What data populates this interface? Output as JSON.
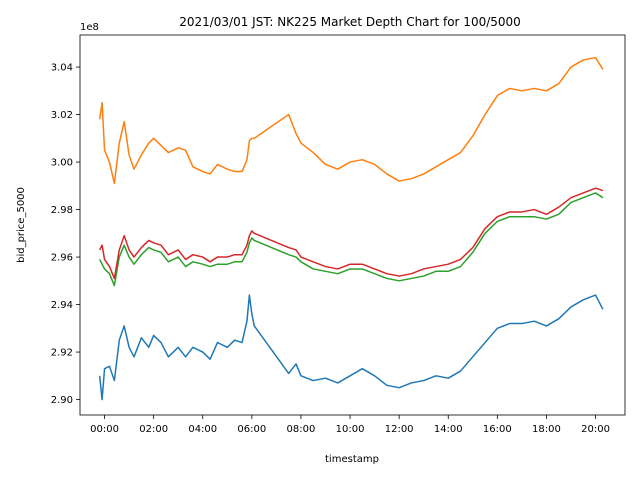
{
  "chart_data": {
    "type": "line",
    "title": "2021/03/01 JST: NK225 Market Depth Chart for 100/5000",
    "xlabel": "timestamp",
    "ylabel": "bid_price_5000",
    "y_offset_label": "1e8",
    "x_unit": "hours since 00:00",
    "xlim": [
      -1.0,
      21.2
    ],
    "ylim": [
      2.8935,
      3.0535
    ],
    "x_ticks": [
      0,
      2,
      4,
      6,
      8,
      10,
      12,
      14,
      16,
      18,
      20
    ],
    "x_tick_labels": [
      "00:00",
      "02:00",
      "04:00",
      "06:00",
      "08:00",
      "10:00",
      "12:00",
      "14:00",
      "16:00",
      "18:00",
      "20:00"
    ],
    "y_ticks": [
      2.9,
      2.92,
      2.94,
      2.96,
      2.98,
      3.0,
      3.02,
      3.04
    ],
    "y_tick_labels": [
      "2.90",
      "2.92",
      "2.94",
      "2.96",
      "2.98",
      "3.00",
      "3.02",
      "3.04"
    ],
    "grid": false,
    "series": [
      {
        "color": "#1f77b4",
        "x": [
          -0.2,
          -0.1,
          0.0,
          0.2,
          0.4,
          0.6,
          0.8,
          1.0,
          1.2,
          1.5,
          1.8,
          2.0,
          2.3,
          2.6,
          3.0,
          3.3,
          3.6,
          4.0,
          4.3,
          4.6,
          5.0,
          5.3,
          5.6,
          5.8,
          5.9,
          6.0,
          6.1,
          7.5,
          7.8,
          8.0,
          8.5,
          9.0,
          9.5,
          10.0,
          10.5,
          11.0,
          11.5,
          12.0,
          12.5,
          13.0,
          13.5,
          14.0,
          14.5,
          15.0,
          15.5,
          16.0,
          16.5,
          17.0,
          17.5,
          18.0,
          18.5,
          19.0,
          19.5,
          20.0,
          20.3
        ],
        "y": [
          2.91,
          2.9,
          2.913,
          2.914,
          2.908,
          2.925,
          2.931,
          2.922,
          2.918,
          2.926,
          2.922,
          2.927,
          2.924,
          2.918,
          2.922,
          2.918,
          2.922,
          2.92,
          2.917,
          2.924,
          2.922,
          2.925,
          2.924,
          2.933,
          2.944,
          2.936,
          2.931,
          2.911,
          2.915,
          2.91,
          2.908,
          2.909,
          2.907,
          2.91,
          2.913,
          2.91,
          2.906,
          2.905,
          2.907,
          2.908,
          2.91,
          2.909,
          2.912,
          2.918,
          2.924,
          2.93,
          2.932,
          2.932,
          2.933,
          2.931,
          2.934,
          2.939,
          2.942,
          2.944,
          2.938
        ]
      },
      {
        "color": "#ff7f0e",
        "x": [
          -0.2,
          -0.1,
          0.0,
          0.2,
          0.4,
          0.6,
          0.8,
          1.0,
          1.2,
          1.5,
          1.8,
          2.0,
          2.3,
          2.6,
          3.0,
          3.3,
          3.6,
          4.0,
          4.3,
          4.6,
          5.0,
          5.3,
          5.6,
          5.8,
          5.9,
          6.0,
          6.1,
          7.5,
          7.8,
          8.0,
          8.5,
          9.0,
          9.5,
          10.0,
          10.5,
          11.0,
          11.5,
          12.0,
          12.5,
          13.0,
          13.5,
          14.0,
          14.5,
          15.0,
          15.5,
          16.0,
          16.5,
          17.0,
          17.5,
          18.0,
          18.5,
          19.0,
          19.5,
          20.0,
          20.3
        ],
        "y": [
          3.018,
          3.025,
          3.005,
          3.0,
          2.991,
          3.008,
          3.017,
          3.003,
          2.997,
          3.003,
          3.008,
          3.01,
          3.007,
          3.004,
          3.006,
          3.005,
          2.998,
          2.996,
          2.995,
          2.999,
          2.997,
          2.996,
          2.996,
          3.001,
          3.009,
          3.01,
          3.01,
          3.02,
          3.012,
          3.008,
          3.004,
          2.999,
          2.997,
          3.0,
          3.001,
          2.999,
          2.995,
          2.992,
          2.993,
          2.995,
          2.998,
          3.001,
          3.004,
          3.011,
          3.02,
          3.028,
          3.031,
          3.03,
          3.031,
          3.03,
          3.033,
          3.04,
          3.043,
          3.044,
          3.039
        ]
      },
      {
        "color": "#2ca02c",
        "x": [
          -0.2,
          -0.1,
          0.0,
          0.2,
          0.4,
          0.6,
          0.8,
          1.0,
          1.2,
          1.5,
          1.8,
          2.0,
          2.3,
          2.6,
          3.0,
          3.3,
          3.6,
          4.0,
          4.3,
          4.6,
          5.0,
          5.3,
          5.6,
          5.8,
          5.9,
          6.0,
          6.1,
          7.5,
          7.8,
          8.0,
          8.5,
          9.0,
          9.5,
          10.0,
          10.5,
          11.0,
          11.5,
          12.0,
          12.5,
          13.0,
          13.5,
          14.0,
          14.5,
          15.0,
          15.5,
          16.0,
          16.5,
          17.0,
          17.5,
          18.0,
          18.5,
          19.0,
          19.5,
          20.0,
          20.3
        ],
        "y": [
          2.959,
          2.957,
          2.955,
          2.953,
          2.948,
          2.96,
          2.965,
          2.96,
          2.957,
          2.961,
          2.964,
          2.963,
          2.962,
          2.958,
          2.96,
          2.956,
          2.958,
          2.957,
          2.956,
          2.957,
          2.957,
          2.958,
          2.958,
          2.962,
          2.966,
          2.968,
          2.967,
          2.961,
          2.96,
          2.958,
          2.955,
          2.954,
          2.953,
          2.955,
          2.955,
          2.953,
          2.951,
          2.95,
          2.951,
          2.952,
          2.954,
          2.954,
          2.956,
          2.962,
          2.97,
          2.975,
          2.977,
          2.977,
          2.977,
          2.976,
          2.978,
          2.983,
          2.985,
          2.987,
          2.985
        ]
      },
      {
        "color": "#d62728",
        "x": [
          -0.2,
          -0.1,
          0.0,
          0.2,
          0.4,
          0.6,
          0.8,
          1.0,
          1.2,
          1.5,
          1.8,
          2.0,
          2.3,
          2.6,
          3.0,
          3.3,
          3.6,
          4.0,
          4.3,
          4.6,
          5.0,
          5.3,
          5.6,
          5.8,
          5.9,
          6.0,
          6.1,
          7.5,
          7.8,
          8.0,
          8.5,
          9.0,
          9.5,
          10.0,
          10.5,
          11.0,
          11.5,
          12.0,
          12.5,
          13.0,
          13.5,
          14.0,
          14.5,
          15.0,
          15.5,
          16.0,
          16.5,
          17.0,
          17.5,
          18.0,
          18.5,
          19.0,
          19.5,
          20.0,
          20.3
        ],
        "y": [
          2.963,
          2.965,
          2.959,
          2.956,
          2.951,
          2.963,
          2.969,
          2.963,
          2.96,
          2.964,
          2.967,
          2.966,
          2.965,
          2.961,
          2.963,
          2.959,
          2.961,
          2.96,
          2.958,
          2.96,
          2.96,
          2.961,
          2.961,
          2.965,
          2.969,
          2.971,
          2.97,
          2.964,
          2.963,
          2.96,
          2.958,
          2.956,
          2.955,
          2.957,
          2.957,
          2.955,
          2.953,
          2.952,
          2.953,
          2.955,
          2.956,
          2.957,
          2.959,
          2.964,
          2.972,
          2.977,
          2.979,
          2.979,
          2.98,
          2.978,
          2.981,
          2.985,
          2.987,
          2.989,
          2.988
        ]
      }
    ]
  }
}
